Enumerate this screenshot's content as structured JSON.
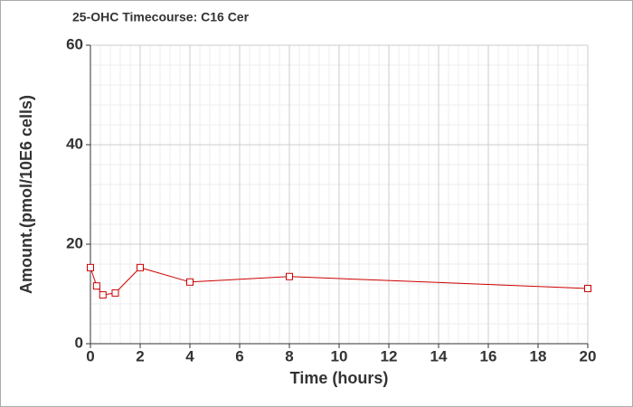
{
  "chart_data": {
    "type": "line",
    "title": "25-OHC Timecourse: C16 Cer",
    "x_label": "Time (hours)",
    "y_label": "Amount.(pmol/10E6 cells)",
    "series": [
      {
        "name": "C16 Cer",
        "color": "#cc0000",
        "x": [
          0,
          0.25,
          0.5,
          1,
          2,
          4,
          8,
          20
        ],
        "values": [
          15.3,
          11.6,
          9.8,
          10.2,
          15.3,
          12.4,
          13.5,
          11.1
        ]
      }
    ],
    "xlim": [
      0,
      20
    ],
    "xticks": [
      0,
      2,
      4,
      6,
      8,
      10,
      12,
      14,
      16,
      18,
      20
    ],
    "ylim": [
      0,
      60
    ],
    "yticks": [
      0,
      20,
      40,
      60
    ],
    "grid": true
  }
}
